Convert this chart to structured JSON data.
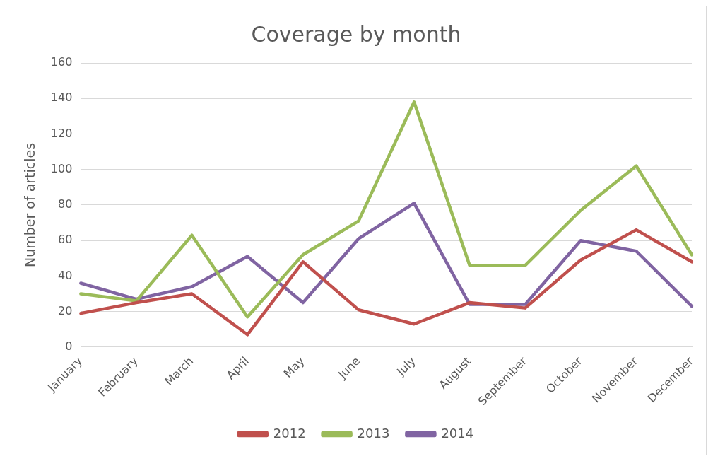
{
  "chart_data": {
    "type": "line",
    "title": "Coverage by month",
    "ylabel": "Number of articles",
    "categories": [
      "January",
      "February",
      "March",
      "April",
      "May",
      "June",
      "July",
      "August",
      "September",
      "October",
      "November",
      "December"
    ],
    "series": [
      {
        "name": "2012",
        "color": "#c0504d",
        "values": [
          19,
          25,
          30,
          7,
          48,
          21,
          13,
          25,
          22,
          49,
          66,
          48
        ]
      },
      {
        "name": "2013",
        "color": "#9bbb59",
        "values": [
          30,
          26,
          63,
          17,
          52,
          71,
          138,
          46,
          46,
          77,
          102,
          52
        ]
      },
      {
        "name": "2014",
        "color": "#8064a2",
        "values": [
          36,
          27,
          34,
          51,
          25,
          61,
          81,
          24,
          24,
          60,
          54,
          23
        ]
      }
    ],
    "ylim": [
      0,
      160
    ],
    "yticks": [
      0,
      20,
      40,
      60,
      80,
      100,
      120,
      140,
      160
    ],
    "grid": "y",
    "legend": "bottom",
    "marker": "none",
    "line_style": "solid"
  }
}
